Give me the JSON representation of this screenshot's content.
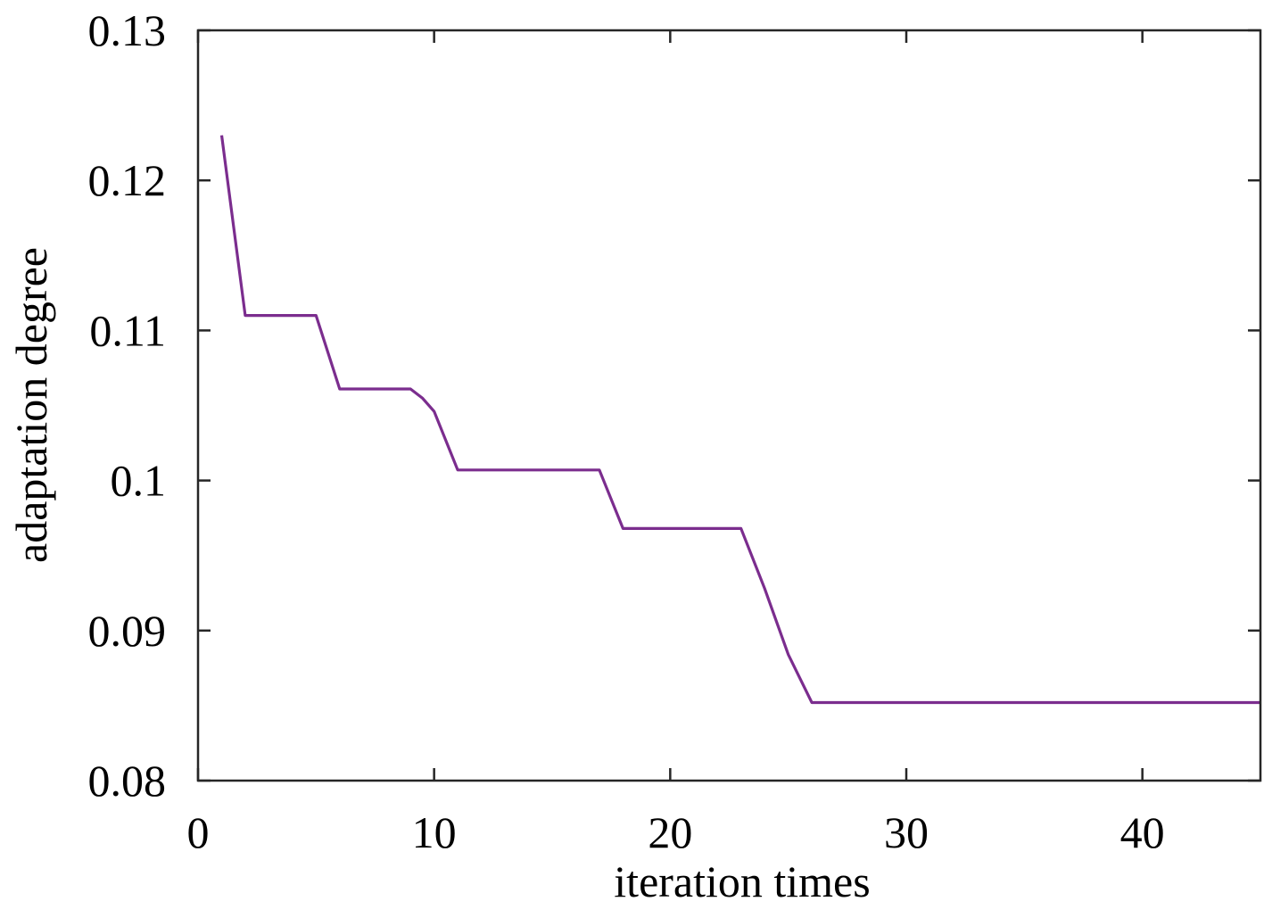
{
  "chart_data": {
    "type": "line",
    "title": "",
    "xlabel": "iteration times",
    "ylabel": "adaptation degree",
    "xlim": [
      0,
      45
    ],
    "ylim": [
      0.08,
      0.13
    ],
    "xticks": [
      0,
      10,
      20,
      30,
      40
    ],
    "xtick_labels": [
      "0",
      "10",
      "20",
      "30",
      "40"
    ],
    "yticks": [
      0.08,
      0.09,
      0.1,
      0.11,
      0.12,
      0.13
    ],
    "ytick_labels": [
      "0.08",
      "0.09",
      "0.1",
      "0.11",
      "0.12",
      "0.13"
    ],
    "grid": false,
    "legend": "none",
    "series": [
      {
        "color": "#7b2d8e",
        "x": [
          1,
          2,
          3,
          4,
          5,
          6,
          7,
          8,
          9,
          9.5,
          10,
          11,
          12,
          13,
          14,
          15,
          16,
          17,
          18,
          19,
          20,
          21,
          22,
          23,
          24,
          25,
          26,
          27,
          28,
          29,
          30,
          31,
          32,
          33,
          34,
          35,
          36,
          37,
          38,
          39,
          40,
          41,
          42,
          43,
          44,
          45
        ],
        "y": [
          0.123,
          0.111,
          0.111,
          0.111,
          0.111,
          0.1061,
          0.1061,
          0.1061,
          0.1061,
          0.1055,
          0.1046,
          0.1007,
          0.1007,
          0.1007,
          0.1007,
          0.1007,
          0.1007,
          0.1007,
          0.0968,
          0.0968,
          0.0968,
          0.0968,
          0.0968,
          0.0968,
          0.0928,
          0.0884,
          0.0852,
          0.0852,
          0.0852,
          0.0852,
          0.0852,
          0.0852,
          0.0852,
          0.0852,
          0.0852,
          0.0852,
          0.0852,
          0.0852,
          0.0852,
          0.0852,
          0.0852,
          0.0852,
          0.0852,
          0.0852,
          0.0852,
          0.0852
        ]
      }
    ]
  }
}
